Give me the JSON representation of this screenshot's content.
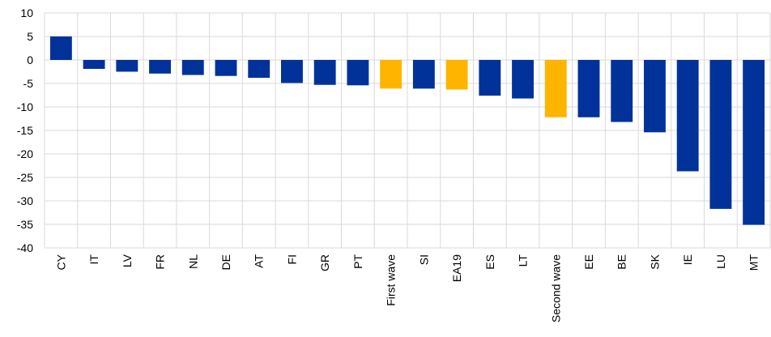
{
  "chart_data": {
    "type": "bar",
    "categories": [
      "CY",
      "IT",
      "LV",
      "FR",
      "NL",
      "DE",
      "AT",
      "FI",
      "GR",
      "PT",
      "First wave",
      "SI",
      "EA19",
      "ES",
      "LT",
      "Second wave",
      "EE",
      "BE",
      "SK",
      "IE",
      "LU",
      "MT"
    ],
    "values": [
      5,
      -1.9,
      -2.5,
      -2.9,
      -3.2,
      -3.4,
      -3.8,
      -4.9,
      -5.3,
      -5.4,
      -6.1,
      -6.1,
      -6.3,
      -7.6,
      -8.2,
      -12.2,
      -12.2,
      -13.2,
      -15.4,
      -23.7,
      -31.7,
      -35.1
    ],
    "colors": [
      "#003299",
      "#003299",
      "#003299",
      "#003299",
      "#003299",
      "#003299",
      "#003299",
      "#003299",
      "#003299",
      "#003299",
      "#ffb400",
      "#003299",
      "#ffb400",
      "#003299",
      "#003299",
      "#ffb400",
      "#003299",
      "#003299",
      "#003299",
      "#003299",
      "#003299",
      "#003299"
    ],
    "ylim": [
      -40,
      10
    ],
    "yticks": [
      10,
      5,
      0,
      -5,
      -10,
      -15,
      -20,
      -25,
      -30,
      -35,
      -40
    ],
    "grid": true
  }
}
